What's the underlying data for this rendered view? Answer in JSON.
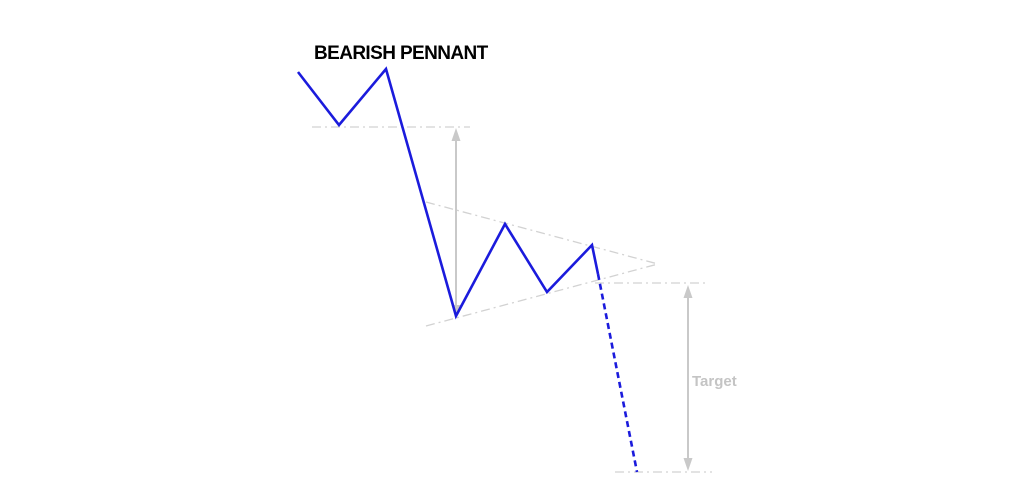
{
  "title": "BEARISH PENNANT",
  "target_label": "Target",
  "colors": {
    "price_line": "#1b1bdc",
    "guide_lines": "#d2d2d2",
    "arrows": "#c9c9c9",
    "title": "#000000",
    "target_label": "#c4c4c4",
    "background": "#ffffff"
  },
  "icons": {
    "measurement_arrow": "up-down-arrow"
  }
}
